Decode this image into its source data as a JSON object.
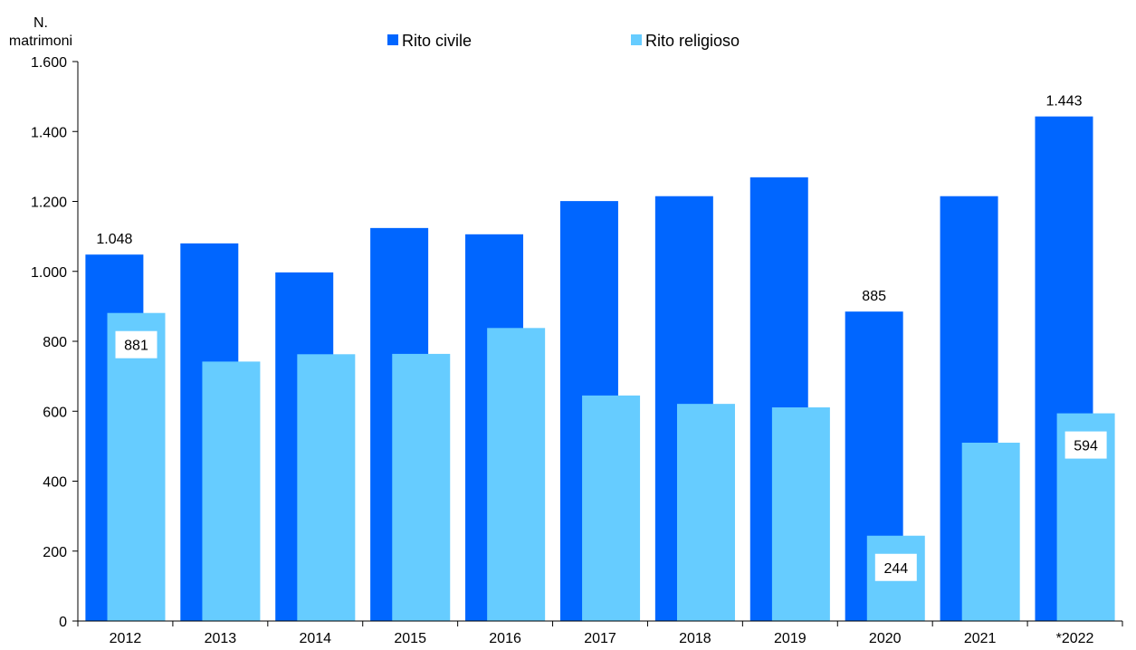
{
  "chart_data": {
    "type": "bar",
    "ylabel": [
      "N.",
      "matrimoni"
    ],
    "categories": [
      "2012",
      "2013",
      "2014",
      "2015",
      "2016",
      "2017",
      "2018",
      "2019",
      "2020",
      "2021",
      "*2022"
    ],
    "ylim": [
      0,
      1600
    ],
    "yticks": [
      0,
      200,
      400,
      600,
      800,
      1000,
      1200,
      1400,
      1600
    ],
    "ytick_labels": [
      "0",
      "200",
      "400",
      "600",
      "800",
      "1.000",
      "1.200",
      "1.400",
      "1.600"
    ],
    "grid": false,
    "legend_position": "top-center",
    "series": [
      {
        "name": "Rito civile",
        "color": "#0066ff",
        "values": [
          1048,
          1080,
          997,
          1124,
          1106,
          1201,
          1215,
          1269,
          885,
          1215,
          1443
        ],
        "labels": [
          {
            "index": 0,
            "text": "1.048"
          },
          {
            "index": 8,
            "text": "885"
          },
          {
            "index": 10,
            "text": "1.443"
          }
        ]
      },
      {
        "name": "Rito religioso",
        "color": "#66ccff",
        "values": [
          881,
          742,
          763,
          764,
          838,
          645,
          621,
          611,
          244,
          510,
          594
        ],
        "labels": [
          {
            "index": 0,
            "text": "881"
          },
          {
            "index": 8,
            "text": "244"
          },
          {
            "index": 10,
            "text": "594"
          }
        ]
      }
    ]
  }
}
